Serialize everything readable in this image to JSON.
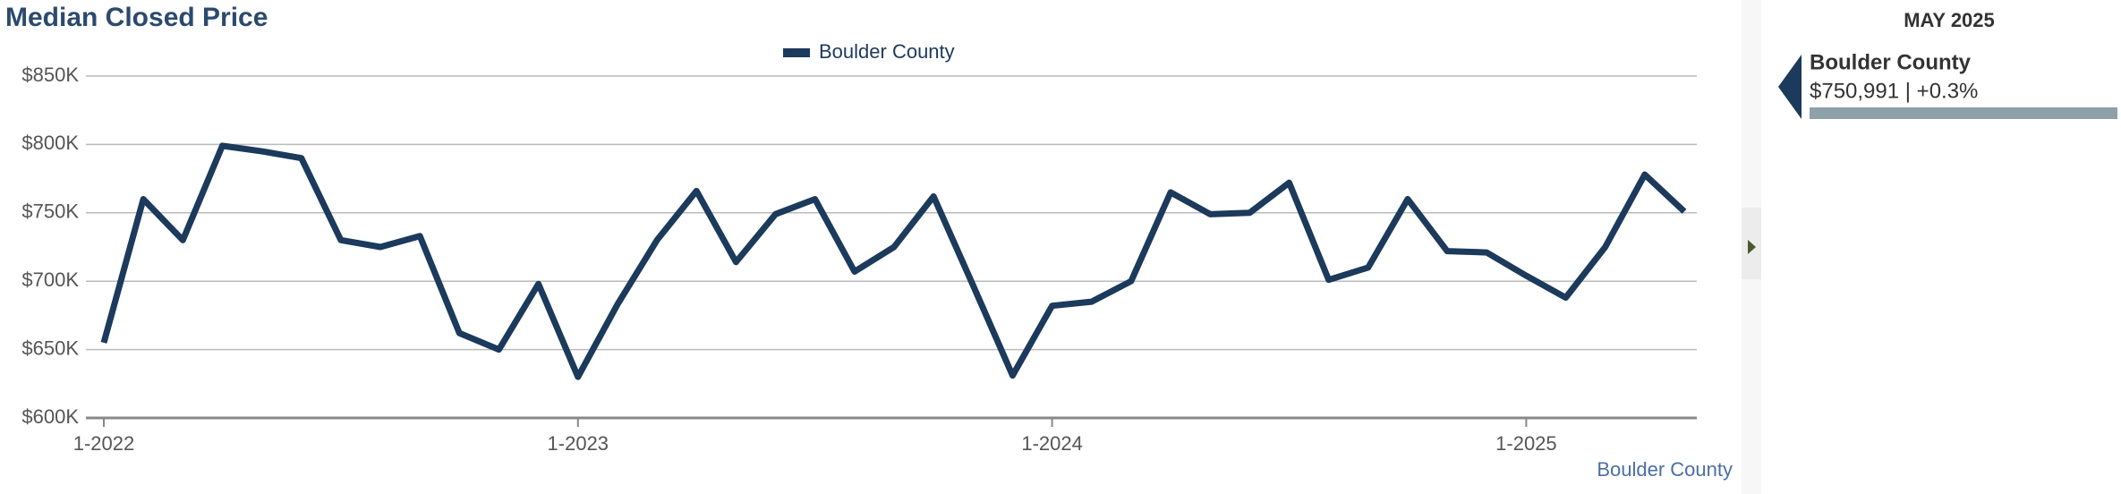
{
  "chart_data": {
    "type": "line",
    "title": "Median Closed Price",
    "categories": [
      "1-2022",
      null,
      null,
      null,
      null,
      null,
      null,
      null,
      null,
      null,
      null,
      null,
      "1-2023",
      null,
      null,
      null,
      null,
      null,
      null,
      null,
      null,
      null,
      null,
      null,
      "1-2024",
      null,
      null,
      null,
      null,
      null,
      null,
      null,
      null,
      null,
      null,
      null,
      "1-2025",
      null,
      null,
      null,
      null
    ],
    "series": [
      {
        "name": "Boulder County",
        "color": "#1b3a5c",
        "values": [
          655000,
          760000,
          730000,
          799000,
          795000,
          790000,
          730000,
          725000,
          733000,
          662000,
          650000,
          698000,
          630000,
          683000,
          730000,
          766000,
          714000,
          749000,
          760000,
          707000,
          725000,
          762000,
          697000,
          631000,
          682000,
          685000,
          700000,
          765000,
          749000,
          750000,
          772000,
          701000,
          710000,
          760000,
          722000,
          721000,
          704000,
          688000,
          725000,
          778000,
          750991
        ]
      }
    ],
    "ylim": [
      600000,
      850000
    ],
    "yticks": [
      {
        "value": 600000,
        "label": "$600K"
      },
      {
        "value": 650000,
        "label": "$650K"
      },
      {
        "value": 700000,
        "label": "$700K"
      },
      {
        "value": 750000,
        "label": "$750K"
      },
      {
        "value": 800000,
        "label": "$800K"
      },
      {
        "value": 850000,
        "label": "$850K"
      }
    ],
    "grid": true,
    "legend": "top",
    "footer": "Boulder County"
  },
  "side_panel": {
    "period": "MAY 2025",
    "name": "Boulder County",
    "detail": "$750,991 | +0.3%"
  }
}
